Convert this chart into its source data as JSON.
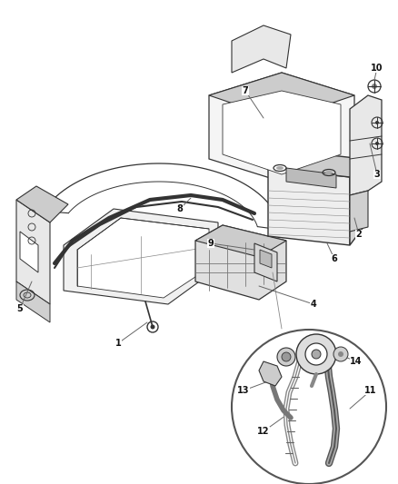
{
  "bg_color": "#ffffff",
  "line_color": "#333333",
  "label_color": "#111111",
  "figsize": [
    4.38,
    5.33
  ],
  "dpi": 100,
  "leader_color": "#666666",
  "component_fill": "#e8e8e8",
  "dark_fill": "#cccccc"
}
